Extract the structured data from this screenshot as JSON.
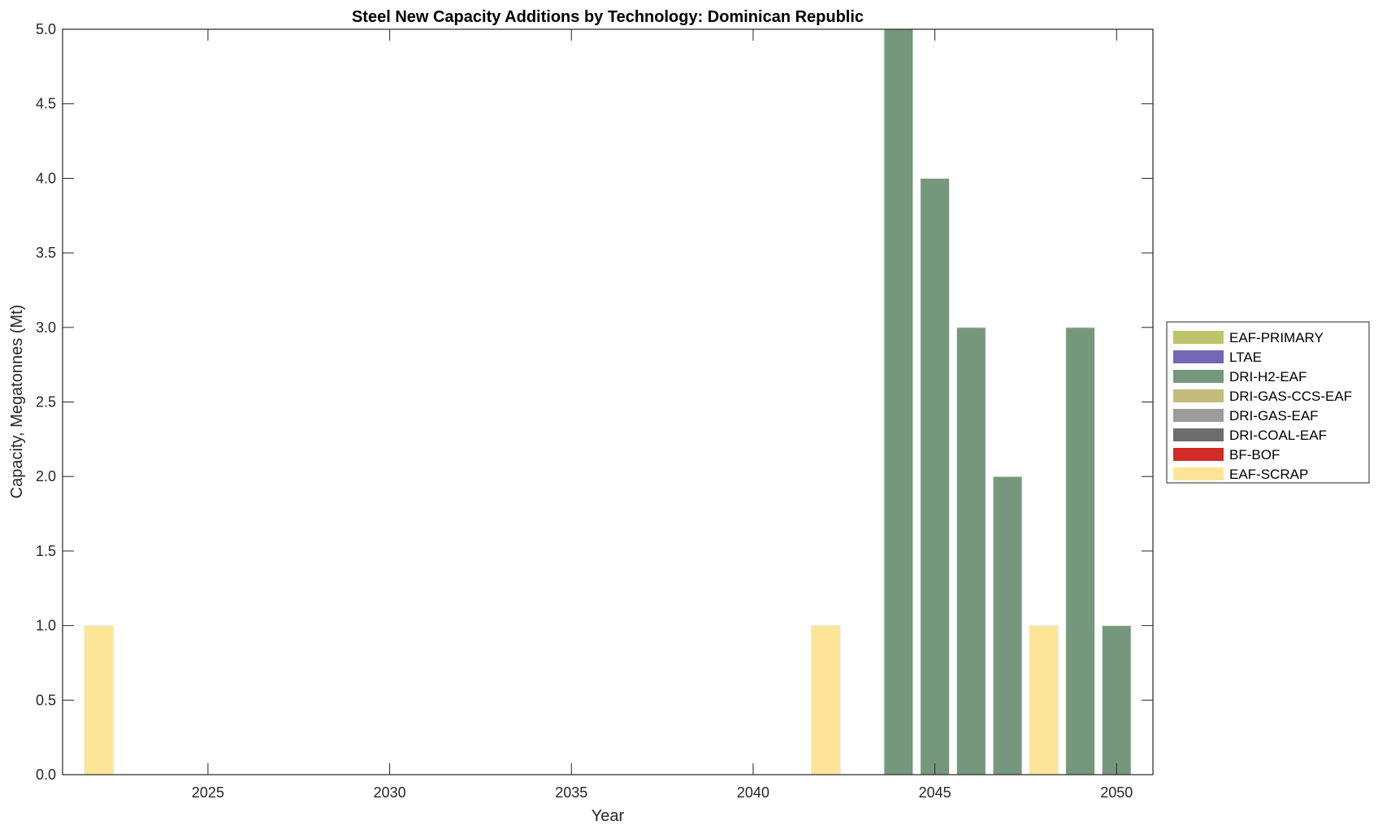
{
  "chart_data": {
    "type": "bar",
    "stacked": true,
    "title": "Steel New Capacity Additions by Technology: Dominican Republic",
    "xlabel": "Year",
    "ylabel": "Capacity, Megatonnes (Mt)",
    "xlim": [
      2021,
      2051
    ],
    "ylim": [
      0,
      5
    ],
    "xticks": [
      2025,
      2030,
      2035,
      2040,
      2045,
      2050
    ],
    "yticks": [
      "0.0",
      "0.5",
      "1.0",
      "1.5",
      "2.0",
      "2.5",
      "3.0",
      "3.5",
      "4.0",
      "4.5",
      "5.0"
    ],
    "grid": false,
    "legend_position": "right",
    "categories": [
      2022,
      2042,
      2044,
      2045,
      2046,
      2047,
      2048,
      2049,
      2050
    ],
    "series": [
      {
        "name": "EAF-PRIMARY",
        "color": "#bdc56b",
        "values": [
          0,
          0,
          0,
          0,
          0,
          0,
          0,
          0,
          0
        ]
      },
      {
        "name": "LTAE",
        "color": "#7367b8",
        "values": [
          0,
          0,
          0,
          0,
          0,
          0,
          0,
          0,
          0
        ]
      },
      {
        "name": "DRI-H2-EAF",
        "color": "#75987c",
        "values": [
          0,
          0,
          5,
          4,
          3,
          2,
          0,
          3,
          1
        ]
      },
      {
        "name": "DRI-GAS-CCS-EAF",
        "color": "#c4bb7d",
        "values": [
          0,
          0,
          0,
          0,
          0,
          0,
          0,
          0,
          0
        ]
      },
      {
        "name": "DRI-GAS-EAF",
        "color": "#9c9c9a",
        "values": [
          0,
          0,
          0,
          0,
          0,
          0,
          0,
          0,
          0
        ]
      },
      {
        "name": "DRI-COAL-EAF",
        "color": "#6d6d6d",
        "values": [
          0,
          0,
          0,
          0,
          0,
          0,
          0,
          0,
          0
        ]
      },
      {
        "name": "BF-BOF",
        "color": "#d12b26",
        "values": [
          0,
          0,
          0,
          0,
          0,
          0,
          0,
          0,
          0
        ]
      },
      {
        "name": "EAF-SCRAP",
        "color": "#fee496",
        "values": [
          1,
          1,
          0,
          0,
          0,
          0,
          1,
          0,
          0
        ]
      }
    ]
  }
}
